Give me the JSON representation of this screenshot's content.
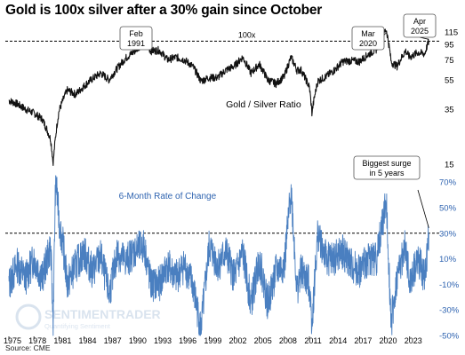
{
  "title": "Gold is 100x silver after a 30% gain since October",
  "source": "Source: CME",
  "watermark": {
    "brand": "SENTIMENTRADER",
    "tagline": "Quantifying Sentiment"
  },
  "colors": {
    "ratio_line": "#111111",
    "roc_line": "#4a7fc0",
    "right_axis_roc": "#2e63b0",
    "reference_line": "#000000",
    "callout_border": "#555555"
  },
  "chart_data": [
    {
      "type": "line",
      "title": "",
      "series": [
        {
          "name": "Gold / Silver Ratio",
          "description_x": "1975 to 2025",
          "values": [
            [
              1975.0,
              40
            ],
            [
              1976.0,
              38
            ],
            [
              1977.0,
              35
            ],
            [
              1978.0,
              33
            ],
            [
              1979.0,
              30
            ],
            [
              1980.0,
              22
            ],
            [
              1980.3,
              15
            ],
            [
              1981.0,
              34
            ],
            [
              1982.0,
              47
            ],
            [
              1983.0,
              44
            ],
            [
              1984.0,
              50
            ],
            [
              1985.0,
              56
            ],
            [
              1986.0,
              61
            ],
            [
              1987.0,
              55
            ],
            [
              1988.0,
              66
            ],
            [
              1989.0,
              77
            ],
            [
              1990.0,
              85
            ],
            [
              1991.2,
              99
            ],
            [
              1992.0,
              86
            ],
            [
              1993.0,
              87
            ],
            [
              1994.0,
              75
            ],
            [
              1995.0,
              78
            ],
            [
              1996.0,
              75
            ],
            [
              1997.0,
              68
            ],
            [
              1998.0,
              54
            ],
            [
              1999.0,
              57
            ],
            [
              2000.0,
              57
            ],
            [
              2001.0,
              64
            ],
            [
              2002.0,
              68
            ],
            [
              2003.0,
              78
            ],
            [
              2004.0,
              61
            ],
            [
              2005.0,
              70
            ],
            [
              2006.0,
              55
            ],
            [
              2007.0,
              52
            ],
            [
              2008.0,
              58
            ],
            [
              2008.8,
              78
            ],
            [
              2009.5,
              64
            ],
            [
              2010.0,
              64
            ],
            [
              2011.0,
              49
            ],
            [
              2011.3,
              33
            ],
            [
              2012.0,
              54
            ],
            [
              2013.0,
              58
            ],
            [
              2014.0,
              64
            ],
            [
              2015.0,
              73
            ],
            [
              2016.0,
              74
            ],
            [
              2017.0,
              73
            ],
            [
              2018.0,
              81
            ],
            [
              2019.0,
              88
            ],
            [
              2020.2,
              120
            ],
            [
              2020.8,
              72
            ],
            [
              2021.5,
              68
            ],
            [
              2022.5,
              86
            ],
            [
              2023.0,
              78
            ],
            [
              2024.0,
              84
            ],
            [
              2024.8,
              82
            ],
            [
              2025.3,
              100
            ]
          ]
        }
      ],
      "annotations": [
        {
          "label": "Feb 1991",
          "x": 1991.2,
          "y": 99
        },
        {
          "label": "Mar 2020",
          "x": 2020.2,
          "y": 120
        },
        {
          "label": "Apr 2025",
          "x": 2025.3,
          "y": 100
        }
      ],
      "reference_line": {
        "y": 100,
        "label": "100x"
      },
      "series_label": "Gold / Silver Ratio",
      "y_ticks": [
        15,
        35,
        55,
        75,
        95,
        115
      ],
      "ylim": [
        15,
        125
      ],
      "xlim": [
        1975,
        2025.8
      ],
      "y_scale": "log",
      "grid": false
    },
    {
      "type": "line",
      "title": "",
      "series": [
        {
          "name": "6-Month Rate of Change",
          "values": [
            [
              1975.0,
              -10
            ],
            [
              1976.0,
              5
            ],
            [
              1977.0,
              -5
            ],
            [
              1978.0,
              10
            ],
            [
              1979.0,
              -5
            ],
            [
              1980.0,
              20
            ],
            [
              1980.3,
              -40
            ],
            [
              1980.6,
              75
            ],
            [
              1981.0,
              40
            ],
            [
              1981.5,
              20
            ],
            [
              1982.0,
              -10
            ],
            [
              1983.0,
              5
            ],
            [
              1984.0,
              15
            ],
            [
              1985.0,
              0
            ],
            [
              1986.0,
              12
            ],
            [
              1987.0,
              -18
            ],
            [
              1988.0,
              15
            ],
            [
              1989.0,
              8
            ],
            [
              1990.0,
              16
            ],
            [
              1991.2,
              20
            ],
            [
              1992.0,
              -10
            ],
            [
              1993.0,
              -10
            ],
            [
              1994.0,
              5
            ],
            [
              1995.0,
              -5
            ],
            [
              1996.0,
              5
            ],
            [
              1997.0,
              -10
            ],
            [
              1998.0,
              -45
            ],
            [
              1999.0,
              20
            ],
            [
              2000.0,
              5
            ],
            [
              2001.0,
              15
            ],
            [
              2002.0,
              -5
            ],
            [
              2003.0,
              15
            ],
            [
              2004.0,
              -25
            ],
            [
              2005.0,
              10
            ],
            [
              2006.0,
              -25
            ],
            [
              2007.0,
              0
            ],
            [
              2008.0,
              5
            ],
            [
              2008.8,
              65
            ],
            [
              2009.5,
              -15
            ],
            [
              2010.0,
              0
            ],
            [
              2011.0,
              -10
            ],
            [
              2011.3,
              -40
            ],
            [
              2012.0,
              30
            ],
            [
              2013.0,
              10
            ],
            [
              2014.0,
              10
            ],
            [
              2015.0,
              15
            ],
            [
              2016.0,
              5
            ],
            [
              2017.0,
              0
            ],
            [
              2018.0,
              10
            ],
            [
              2019.0,
              10
            ],
            [
              2020.2,
              55
            ],
            [
              2020.8,
              -40
            ],
            [
              2021.5,
              -5
            ],
            [
              2022.5,
              20
            ],
            [
              2023.0,
              -10
            ],
            [
              2024.0,
              10
            ],
            [
              2024.8,
              -5
            ],
            [
              2025.3,
              30
            ]
          ]
        }
      ],
      "annotations": [
        {
          "label": "6-Month Rate of Change"
        },
        {
          "label": "Biggest surge in 5 years",
          "x": 2025.3,
          "y": 30
        }
      ],
      "reference_line": {
        "y": 30
      },
      "y_ticks": [
        -50,
        -30,
        -10,
        10,
        30,
        50,
        70
      ],
      "y_tick_labels": [
        "-50%",
        "-30%",
        "-10%",
        "10%",
        "30%",
        "50%",
        "70%"
      ],
      "ylim": [
        -50,
        75
      ],
      "x_ticks": [
        1975,
        1978,
        1981,
        1984,
        1987,
        1990,
        1993,
        1996,
        1999,
        2002,
        2005,
        2008,
        2011,
        2014,
        2017,
        2020,
        2023
      ],
      "x_tick_labels": [
        "1975",
        "1978",
        "1981",
        "1984",
        "1987",
        "1990",
        "1993",
        "1996",
        "1999",
        "2002",
        "2005",
        "2008",
        "2011",
        "2014",
        "2017",
        "2020",
        "2023"
      ],
      "xlim": [
        1975,
        2025.8
      ],
      "grid": false
    }
  ]
}
